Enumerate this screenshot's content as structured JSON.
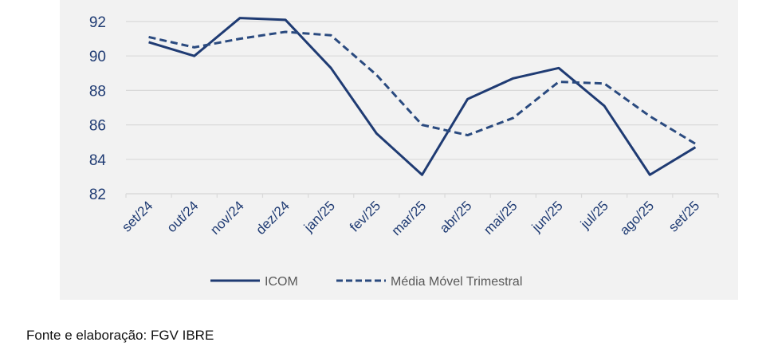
{
  "chart_data": {
    "type": "line",
    "title": "",
    "xlabel": "",
    "ylabel": "",
    "categories": [
      "set/24",
      "out/24",
      "nov/24",
      "dez/24",
      "jan/25",
      "fev/25",
      "mar/25",
      "abr/25",
      "mai/25",
      "jun/25",
      "jul/25",
      "ago/25",
      "set/25"
    ],
    "ylim": [
      82,
      92
    ],
    "yticks": [
      82,
      84,
      86,
      88,
      90,
      92
    ],
    "grid": true,
    "legend_position": "bottom",
    "series": [
      {
        "name": "ICOM",
        "style": "solid",
        "color": "#1f3b73",
        "values": [
          90.8,
          90.0,
          92.2,
          92.1,
          89.3,
          85.5,
          83.1,
          87.5,
          88.7,
          89.3,
          87.1,
          83.1,
          84.7
        ]
      },
      {
        "name": "Média Móvel Trimestral",
        "style": "dashed",
        "color": "#2a4a7f",
        "values": [
          91.1,
          90.5,
          91.0,
          91.4,
          91.2,
          88.9,
          86.0,
          85.4,
          86.4,
          88.5,
          88.4,
          86.5,
          84.9
        ]
      }
    ]
  },
  "footer": {
    "source": "Fonte e elaboração: FGV IBRE"
  }
}
